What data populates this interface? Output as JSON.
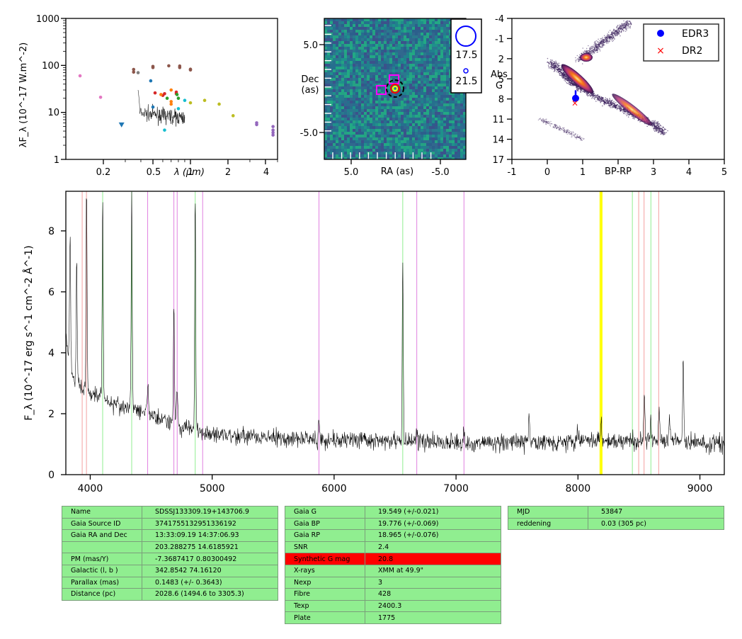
{
  "sed": {
    "ylabel": "λF_λ (10^-17 W.m^-2)",
    "xlabel": "λ (μm)",
    "yticks": [
      "1000",
      "100",
      "10",
      "1"
    ],
    "xticks": [
      "0.2",
      "0.5",
      "1",
      "2",
      "4"
    ],
    "colors": {
      "pink": "#e377c2",
      "brown": "#8c564b",
      "grey": "#7f7f7f",
      "red": "#d62728",
      "orange": "#ff7f0e",
      "green": "#2ca02c",
      "blue": "#1f77b4",
      "cyan": "#17becf",
      "olive": "#bcbd22",
      "purple": "#9467bd"
    }
  },
  "image": {
    "ylabel_line1": "Dec",
    "ylabel_line2": "(as)",
    "xlabel": "RA (as)",
    "yticks": [
      "5.0",
      "-5.0"
    ],
    "xticks": [
      "5.0",
      "-5.0"
    ],
    "legend": [
      "17.5",
      "21.5"
    ]
  },
  "hrd": {
    "xlabel": "BP-RP",
    "ylabel_line1": "Abs",
    "ylabel_line2": "G",
    "yticks": [
      "-4",
      "-1",
      "2",
      "5",
      "8",
      "11",
      "14",
      "17"
    ],
    "xticks": [
      "-1",
      "0",
      "1",
      "3",
      "4",
      "5"
    ],
    "legend": [
      "EDR3",
      "DR2"
    ],
    "colors": {
      "edr3": "#0000ff",
      "dr2": "#ff0000"
    }
  },
  "spectrum": {
    "ylabel": "F_λ (10^-17 erg s^-1 cm^-2 Å^-1)",
    "yticks": [
      "0",
      "2",
      "4",
      "6",
      "8"
    ],
    "xticks": [
      "4000",
      "5000",
      "6000",
      "7000",
      "8000",
      "9000"
    ]
  },
  "chart_data": [
    {
      "type": "scatter",
      "xlabel": "λ (μm)",
      "ylabel": "λF_λ (10^-17 W.m^-2)",
      "xscale": "log",
      "yscale": "log",
      "xlim": [
        0.1,
        5
      ],
      "ylim": [
        1,
        1000
      ],
      "series": [
        {
          "values": [
            [
              0.13,
              60
            ],
            [
              0.19,
              21
            ]
          ],
          "color": "pink"
        },
        {
          "values": [
            [
              0.35,
              82
            ],
            [
              0.35,
              72
            ],
            [
              0.5,
              95
            ],
            [
              0.5,
              90
            ],
            [
              0.67,
              98
            ],
            [
              0.82,
              97
            ],
            [
              0.82,
              90
            ],
            [
              1.0,
              83
            ],
            [
              1.0,
              80
            ]
          ],
          "color": "brown"
        },
        {
          "values": [
            [
              0.38,
              70
            ]
          ],
          "color": "grey"
        },
        {
          "values": [
            [
              0.52,
              26
            ],
            [
              0.6,
              23
            ],
            [
              0.62,
              25
            ],
            [
              0.77,
              27
            ],
            [
              0.77,
              25
            ]
          ],
          "color": "red"
        },
        {
          "values": [
            [
              0.58,
              24
            ],
            [
              0.7,
              30
            ],
            [
              0.7,
              17
            ],
            [
              0.7,
              15
            ]
          ],
          "color": "orange"
        },
        {
          "values": [
            [
              0.65,
              20
            ],
            [
              0.78,
              24
            ],
            [
              0.8,
              20
            ]
          ],
          "color": "green"
        },
        {
          "values": [
            [
              0.48,
              47
            ],
            [
              0.5,
              13
            ],
            [
              0.28,
              5.5
            ]
          ],
          "color": "blue"
        },
        {
          "values": [
            [
              0.62,
              4.2
            ],
            [
              0.9,
              18
            ],
            [
              0.8,
              12
            ]
          ],
          "color": "cyan"
        },
        {
          "values": [
            [
              1.0,
              16
            ],
            [
              1.3,
              18
            ],
            [
              1.7,
              15
            ],
            [
              2.2,
              8.5
            ]
          ],
          "color": "olive"
        },
        {
          "values": [
            [
              3.4,
              6
            ],
            [
              3.4,
              5.5
            ],
            [
              4.6,
              5
            ],
            [
              4.6,
              4.2
            ],
            [
              4.6,
              3.7
            ],
            [
              4.6,
              3.3
            ]
          ],
          "color": "purple"
        }
      ]
    },
    {
      "type": "heatmap",
      "xlabel": "RA (as)",
      "ylabel": "Dec (as)",
      "xlim": [
        8,
        -8
      ],
      "ylim": [
        -8,
        8
      ],
      "legend": [
        "17.5",
        "21.5"
      ]
    },
    {
      "type": "scatter",
      "xlabel": "BP-RP",
      "ylabel": "Abs G",
      "xlim": [
        -1,
        5
      ],
      "ylim": [
        17,
        -4
      ],
      "series": [
        {
          "name": "EDR3",
          "values": [
            [
              0.8,
              7.9
            ]
          ],
          "color": "edr3"
        },
        {
          "name": "DR2",
          "values": [
            [
              0.78,
              8.6
            ]
          ],
          "color": "dr2"
        }
      ]
    },
    {
      "type": "line",
      "xlabel": "",
      "ylabel": "F_λ (10^-17 erg s^-1 cm^-2 Å^-1)",
      "xlim": [
        3800,
        9200
      ],
      "ylim": [
        0,
        9.3
      ],
      "continuum": [
        [
          3800,
          4.5
        ],
        [
          3850,
          3.3
        ],
        [
          3900,
          3.0
        ],
        [
          4000,
          2.7
        ],
        [
          4100,
          2.5
        ],
        [
          4200,
          2.3
        ],
        [
          4400,
          2.1
        ],
        [
          4600,
          1.8
        ],
        [
          4800,
          1.5
        ],
        [
          5000,
          1.35
        ],
        [
          5300,
          1.25
        ],
        [
          5600,
          1.2
        ],
        [
          6000,
          1.15
        ],
        [
          6500,
          1.1
        ],
        [
          7000,
          1.05
        ],
        [
          7500,
          1.05
        ],
        [
          8000,
          1.1
        ],
        [
          8500,
          1.1
        ],
        [
          9000,
          1.05
        ],
        [
          9200,
          1.0
        ]
      ],
      "emission": [
        [
          3835,
          8.0
        ],
        [
          3889,
          7.0
        ],
        [
          3970,
          9.3
        ],
        [
          4102,
          9.3
        ],
        [
          4340,
          9.3
        ],
        [
          4471,
          2.9
        ],
        [
          4686,
          5.6
        ],
        [
          4713,
          3.0
        ],
        [
          4861,
          9.3
        ],
        [
          5876,
          1.7
        ],
        [
          6563,
          6.9
        ],
        [
          6678,
          1.4
        ],
        [
          7065,
          1.3
        ],
        [
          7600,
          1.9
        ],
        [
          8000,
          1.4
        ],
        [
          8190,
          1.8
        ],
        [
          8545,
          2.5
        ],
        [
          8598,
          1.8
        ],
        [
          8665,
          2.1
        ],
        [
          8750,
          1.9
        ],
        [
          8863,
          3.8
        ]
      ],
      "markers": [
        {
          "x": 3934,
          "color": "salmon"
        },
        {
          "x": 3969,
          "color": "salmon"
        },
        {
          "x": 4102,
          "color": "lightgreen"
        },
        {
          "x": 4340,
          "color": "lightgreen"
        },
        {
          "x": 4471,
          "color": "violet"
        },
        {
          "x": 4686,
          "color": "violet"
        },
        {
          "x": 4713,
          "color": "violet"
        },
        {
          "x": 4861,
          "color": "lightgreen"
        },
        {
          "x": 4922,
          "color": "violet"
        },
        {
          "x": 5876,
          "color": "violet"
        },
        {
          "x": 6563,
          "color": "lightgreen"
        },
        {
          "x": 6678,
          "color": "violet"
        },
        {
          "x": 7065,
          "color": "violet"
        },
        {
          "x": 8183,
          "color": "yellow"
        },
        {
          "x": 8195,
          "color": "yellow"
        },
        {
          "x": 8446,
          "color": "lightgreen"
        },
        {
          "x": 8498,
          "color": "salmon"
        },
        {
          "x": 8542,
          "color": "salmon"
        },
        {
          "x": 8598,
          "color": "lightgreen"
        },
        {
          "x": 8662,
          "color": "salmon"
        }
      ]
    }
  ],
  "tables": {
    "left": [
      [
        "Name",
        "SDSSJ133309.19+143706.9"
      ],
      [
        "Gaia Source ID",
        "3741755132951336192"
      ],
      [
        "Gaia RA and Dec",
        "13:33:09.19     14:37:06.93"
      ],
      [
        "",
        "203.288275     14.6185921"
      ],
      [
        "PM (mas/Y)",
        "-7.3687417     0.80300492"
      ],
      [
        "Galactic (l, b )",
        "342.8542     74.16120"
      ],
      [
        "Parallax (mas)",
        "0.1483 (+/- 0.3643)"
      ],
      [
        "Distance (pc)",
        "2028.6 (1494.6 to 3305.3)"
      ]
    ],
    "middle": [
      [
        "Gaia G",
        "19.549 (+/-0.021)"
      ],
      [
        "Gaia BP",
        "19.776 (+/-0.069)"
      ],
      [
        "Gaia RP",
        "18.965 (+/-0.076)"
      ],
      [
        "SNR",
        "2.4"
      ],
      [
        "Synthetic G mag",
        "20.8"
      ],
      [
        "X-rays",
        "XMM at 49.9\""
      ],
      [
        "Nexp",
        "3"
      ],
      [
        "Fibre",
        "428"
      ],
      [
        "Texp",
        "2400.3"
      ],
      [
        "Plate",
        "1775"
      ]
    ],
    "right": [
      [
        "MJD",
        "53847"
      ],
      [
        "reddening",
        "0.03 (305 pc)"
      ]
    ]
  }
}
